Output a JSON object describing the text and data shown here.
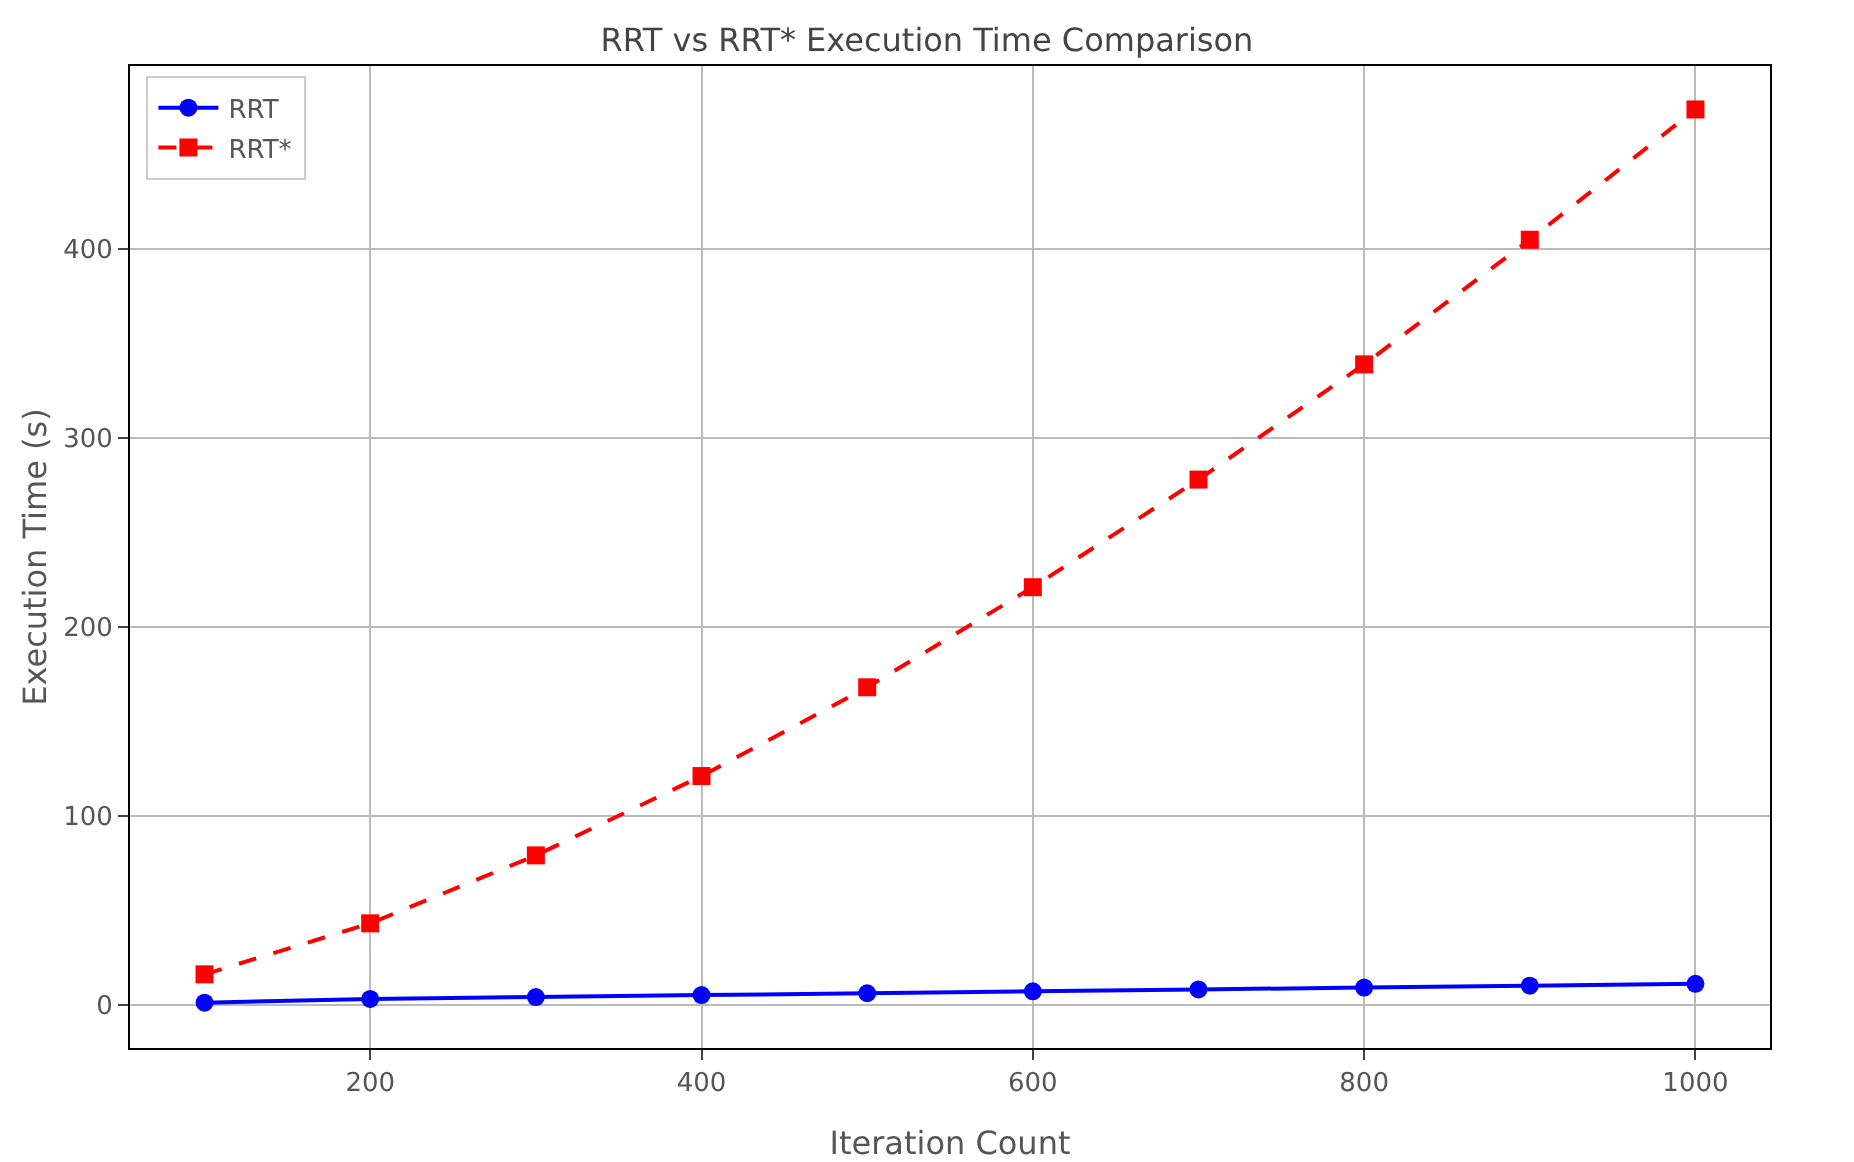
{
  "chart_data": {
    "type": "line",
    "title": "RRT vs RRT* Execution Time Comparison",
    "xlabel": "Iteration Count",
    "ylabel": "Execution Time (s)",
    "x": [
      100,
      200,
      300,
      400,
      500,
      600,
      700,
      800,
      900,
      1000
    ],
    "series": [
      {
        "name": "RRT",
        "color": "#0000ff",
        "marker": "circle",
        "line_style": "solid",
        "values": [
          1,
          3,
          4,
          5,
          6,
          7,
          8,
          9,
          10,
          11
        ]
      },
      {
        "name": "RRT*",
        "color": "#ff0000",
        "marker": "square",
        "line_style": "dashed",
        "values": [
          16,
          43,
          79,
          121,
          168,
          221,
          278,
          339,
          405,
          474
        ]
      }
    ],
    "xlim": [
      55,
      1045
    ],
    "xticks": [
      200,
      400,
      600,
      800,
      1000
    ],
    "ylim": [
      -23,
      497
    ],
    "yticks": [
      0,
      100,
      200,
      300,
      400
    ],
    "grid": true,
    "legend": "top left"
  }
}
